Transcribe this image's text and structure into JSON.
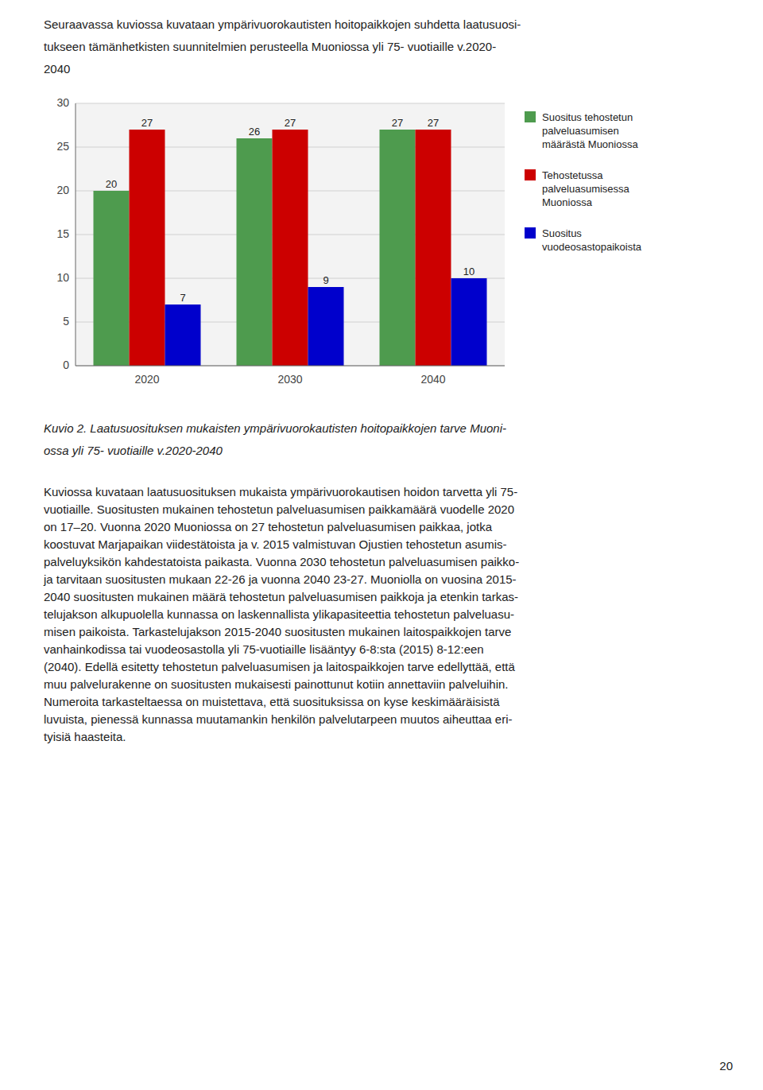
{
  "intro_text": [
    "Seuraavassa kuviossa kuvataan ympärivuorokautisten hoitopaikkojen suhdetta laatusuosi-",
    "tukseen tämänhetkisten suunnitelmien perusteella Muoniossa yli 75- vuotiaille v.2020-",
    "2040"
  ],
  "chart_data": {
    "type": "bar",
    "categories": [
      "2020",
      "2030",
      "2040"
    ],
    "series": [
      {
        "name": "Suositus tehostetun\npalveluasumisen\nmäärästä Muoniossa",
        "color": "#4E9B4E",
        "values": [
          20,
          26,
          27
        ]
      },
      {
        "name": "Tehostetussa\npalveluasumisessa\nMuoniossa",
        "color": "#CC0000",
        "values": [
          27,
          27,
          27
        ]
      },
      {
        "name": "Suositus\nvuodeosastopaikoista",
        "color": "#0000CC",
        "values": [
          7,
          9,
          10
        ]
      }
    ],
    "ylim": [
      0,
      30
    ],
    "yticks": [
      0,
      5,
      10,
      15,
      20,
      25,
      30
    ],
    "grid": true,
    "data_labels": true,
    "legend": "right"
  },
  "caption": [
    "Kuvio 2. Laatusuosituksen mukaisten ympärivuorokautisten hoitopaikkojen tarve Muoni-",
    "ossa yli 75- vuotiaille v.2020-2040"
  ],
  "body_text": [
    "Kuviossa kuvataan laatusuosituksen mukaista ympärivuorokautisen hoidon tarvetta yli 75-",
    "vuotiaille. Suositusten mukainen tehostetun palveluasumisen paikkamäärä vuodelle 2020",
    "on 17–20. Vuonna 2020 Muoniossa on 27 tehostetun palveluasumisen paikkaa, jotka",
    "koostuvat Marjapaikan viidestätoista ja v. 2015 valmistuvan Ojustien tehostetun asumis-",
    "palveluyksikön kahdestatoista paikasta. Vuonna 2030 tehostetun palveluasumisen paikko-",
    "ja tarvitaan suositusten mukaan 22-26 ja vuonna 2040 23-27. Muoniolla on vuosina 2015-",
    "2040 suositusten mukainen määrä tehostetun palveluasumisen paikkoja ja etenkin tarkas-",
    "telujakson alkupuolella kunnassa on laskennallista ylikapasiteettia tehostetun palveluasu-",
    "misen paikoista. Tarkastelujakson 2015-2040 suositusten mukainen laitospaikkojen tarve",
    "vanhainkodissa tai vuodeosastolla yli 75-vuotiaille lisääntyy 6-8:sta (2015) 8-12:een",
    "(2040). Edellä esitetty tehostetun palveluasumisen ja laitospaikkojen tarve edellyttää, että",
    "muu palvelurakenne on suositusten mukaisesti painottunut kotiin annettaviin palveluihin.",
    "Numeroita tarkasteltaessa on muistettava, että suosituksissa on kyse keskimääräisistä",
    "luvuista, pienessä kunnassa muutamankin henkilön palvelutarpeen muutos aiheuttaa eri-",
    "tyisiä haasteita."
  ],
  "page_number": "20"
}
